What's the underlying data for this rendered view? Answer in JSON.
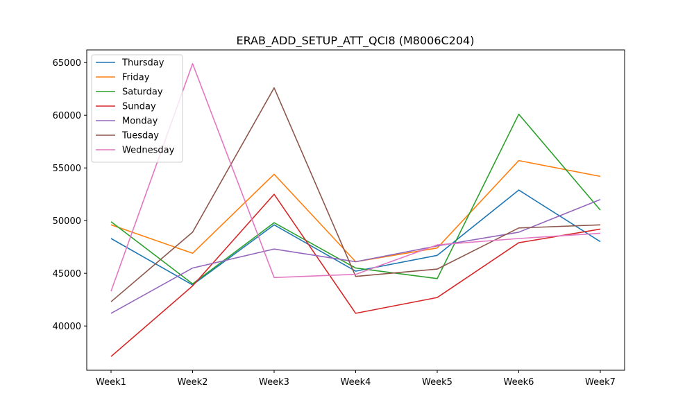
{
  "chart_data": {
    "type": "line",
    "title": "ERAB_ADD_SETUP_ATT_QCI8 (M8006C204)",
    "xlabel": "",
    "ylabel": "",
    "categories": [
      "Week1",
      "Week2",
      "Week3",
      "Week4",
      "Week5",
      "Week6",
      "Week7"
    ],
    "yticks": [
      40000,
      45000,
      50000,
      55000,
      60000,
      65000
    ],
    "ylim": [
      35800,
      66200
    ],
    "grid": false,
    "legend_position": "top-left",
    "series": [
      {
        "name": "Thursday",
        "color": "#1f77b4",
        "values": [
          48300,
          43900,
          49600,
          45200,
          46700,
          52900,
          48000
        ]
      },
      {
        "name": "Friday",
        "color": "#ff7f0e",
        "values": [
          49600,
          46900,
          54400,
          46100,
          47400,
          55700,
          54200
        ]
      },
      {
        "name": "Saturday",
        "color": "#2ca02c",
        "values": [
          49900,
          44000,
          49800,
          45500,
          44500,
          60100,
          51000
        ]
      },
      {
        "name": "Sunday",
        "color": "#d62728",
        "values": [
          37100,
          43800,
          52500,
          41200,
          42700,
          47900,
          49200
        ]
      },
      {
        "name": "Monday",
        "color": "#9467bd",
        "values": [
          41200,
          45500,
          47300,
          46100,
          47600,
          48900,
          52000
        ]
      },
      {
        "name": "Tuesday",
        "color": "#8c564b",
        "values": [
          42300,
          48900,
          62600,
          44700,
          45400,
          49300,
          49600
        ]
      },
      {
        "name": "Wednesday",
        "color": "#e377c2",
        "values": [
          43300,
          64900,
          44600,
          44900,
          47700,
          48300,
          48800
        ]
      }
    ]
  }
}
